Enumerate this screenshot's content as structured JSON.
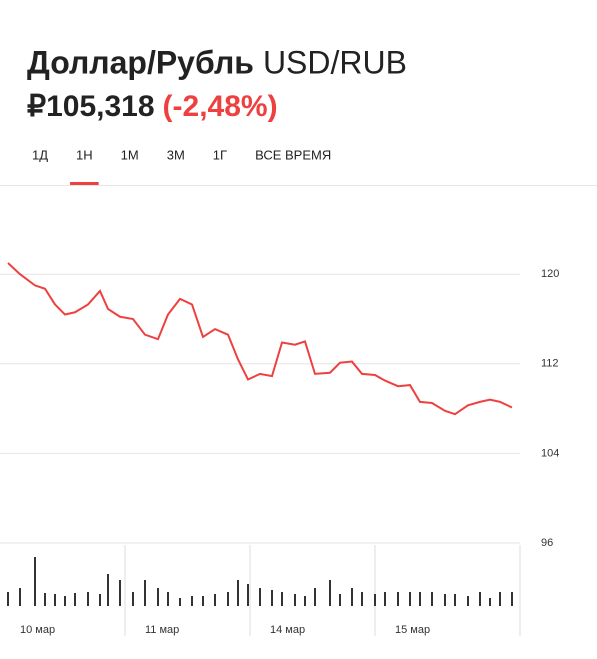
{
  "header": {
    "title": "Доллар/Рубль",
    "ticker": "USD/RUB",
    "price": "₽105,318",
    "change": "(-2,48%)"
  },
  "tabs": [
    "1Д",
    "1Н",
    "1М",
    "3М",
    "1Г",
    "ВСЕ ВРЕМЯ"
  ],
  "active_tab": 1,
  "chart_data": [
    {
      "type": "line",
      "color": "#ef4040",
      "grid": true,
      "x": [
        0,
        0.096,
        0.216,
        0.296,
        0.376,
        0.456,
        0.536,
        0.64,
        0.736,
        0.8,
        0.896,
        1.0,
        1.096,
        1.2,
        1.28,
        1.376,
        1.472,
        1.56,
        1.656,
        1.76,
        1.84,
        1.92,
        2.016,
        2.112,
        2.192,
        2.296,
        2.376,
        2.456,
        2.576,
        2.656,
        2.752,
        2.832,
        2.936,
        3.016,
        3.12,
        3.216,
        3.296,
        3.392,
        3.496,
        3.576,
        3.68,
        3.776,
        3.856,
        3.936,
        4.032
      ],
      "values": [
        121.0,
        120.0,
        119.0,
        118.7,
        117.3,
        116.4,
        116.6,
        117.3,
        118.5,
        116.9,
        116.2,
        116.0,
        114.6,
        114.2,
        116.4,
        117.8,
        117.3,
        114.4,
        115.1,
        114.6,
        112.4,
        110.6,
        111.1,
        110.9,
        113.9,
        113.7,
        114.0,
        111.1,
        111.2,
        112.1,
        112.2,
        111.1,
        111.0,
        110.5,
        110.0,
        110.1,
        108.6,
        108.5,
        107.8,
        107.5,
        108.3,
        108.6,
        108.8,
        108.6,
        108.1
      ],
      "xlim": [
        0,
        4.1
      ],
      "xticks": [
        {
          "value": 0,
          "label": "10 мар"
        },
        {
          "value": 1,
          "label": "11 мар"
        },
        {
          "value": 2,
          "label": "14 мар"
        },
        {
          "value": 3,
          "label": "15 мар"
        }
      ],
      "ylim": [
        96,
        124
      ],
      "yticks": [
        96,
        104,
        112,
        120
      ]
    },
    {
      "type": "bar",
      "color": "#333333",
      "x": [
        0,
        0.096,
        0.216,
        0.296,
        0.376,
        0.456,
        0.536,
        0.64,
        0.736,
        0.8,
        0.896,
        1.0,
        1.096,
        1.2,
        1.28,
        1.376,
        1.472,
        1.56,
        1.656,
        1.76,
        1.84,
        1.92,
        2.016,
        2.112,
        2.192,
        2.296,
        2.376,
        2.456,
        2.576,
        2.656,
        2.752,
        2.832,
        2.936,
        3.016,
        3.12,
        3.216,
        3.296,
        3.392,
        3.496,
        3.576,
        3.68,
        3.776,
        3.856,
        3.936,
        4.032
      ],
      "values": [
        14,
        18,
        49,
        13,
        12,
        10,
        13,
        14,
        12,
        32,
        26,
        14,
        26,
        18,
        14,
        8,
        10,
        10,
        12,
        14,
        26,
        22,
        18,
        16,
        14,
        12,
        10,
        18,
        26,
        12,
        18,
        14,
        12,
        14,
        14,
        14,
        14,
        14,
        12,
        12,
        10,
        14,
        8,
        14,
        14
      ]
    }
  ]
}
